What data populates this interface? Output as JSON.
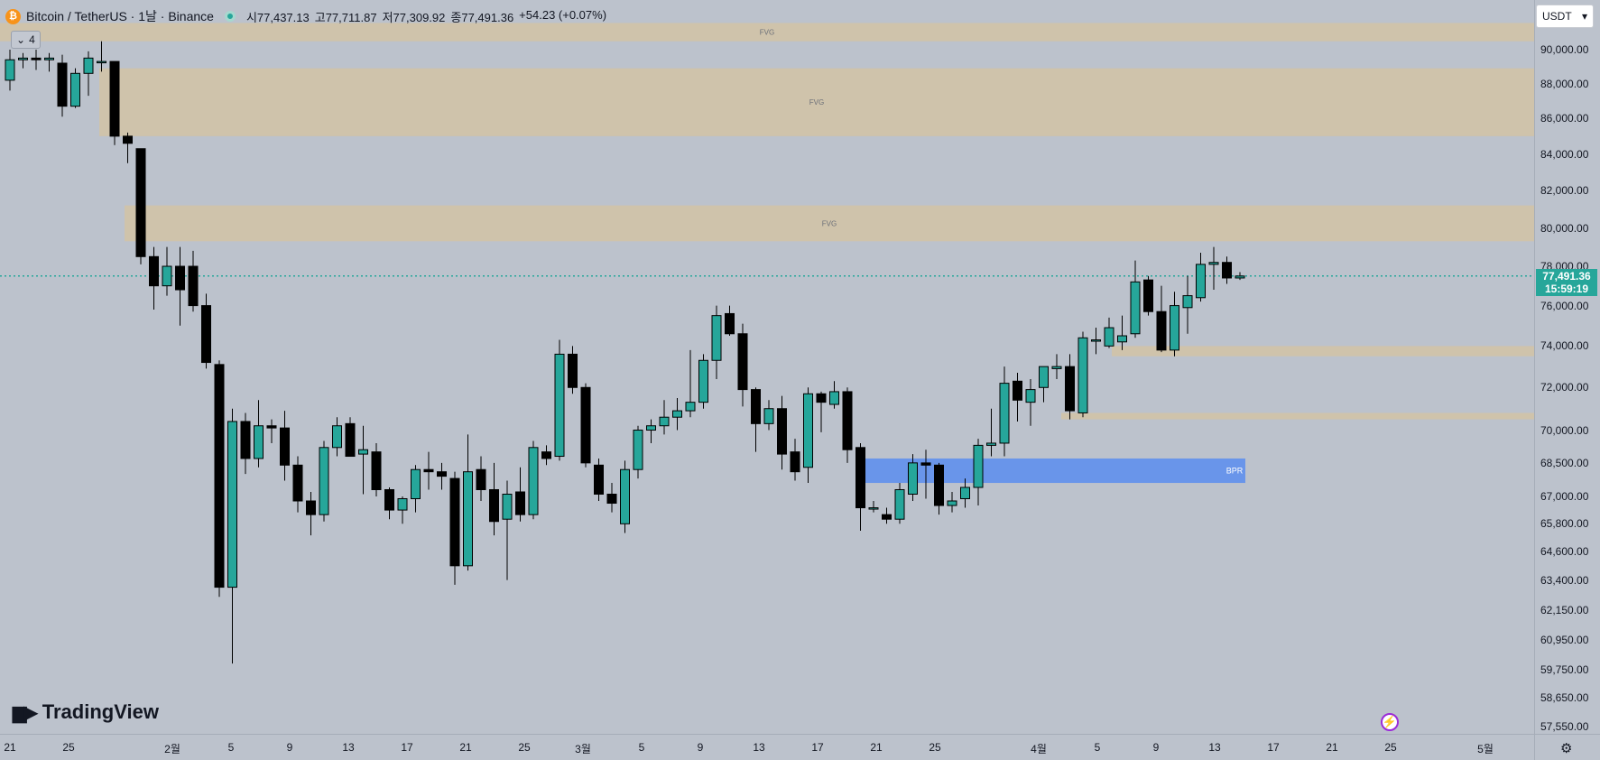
{
  "header": {
    "symbol": "Bitcoin / TetherUS · 1날 · Binance",
    "icon": "bitcoin-icon",
    "open": "시77,437.13",
    "high": "고77,711.87",
    "low": "저77,309.92",
    "close": "종77,491.36",
    "change": "+54.23 (+0.07%)",
    "collapse_count": "4"
  },
  "currency": "USDT",
  "last_price": {
    "value": "77,491.36",
    "countdown": "15:59:19"
  },
  "brand": {
    "name": "TradingView"
  },
  "price_ticks": [
    "90,000.00",
    "88,000.00",
    "86,000.00",
    "84,000.00",
    "82,000.00",
    "80,000.00",
    "78,000.00",
    "76,000.00",
    "74,000.00",
    "72,000.00",
    "70,000.00",
    "68,500.00",
    "67,000.00",
    "65,800.00",
    "64,600.00",
    "63,400.00",
    "62,150.00",
    "60,950.00",
    "59,750.00",
    "58,650.00",
    "57,550.00"
  ],
  "time_ticks": [
    "21",
    "25",
    "2월",
    "5",
    "9",
    "13",
    "17",
    "21",
    "25",
    "3월",
    "5",
    "9",
    "13",
    "17",
    "21",
    "25",
    "4월",
    "5",
    "9",
    "13",
    "17",
    "21",
    "25",
    "5월"
  ],
  "colors": {
    "up": "#26a69a",
    "down": "#000000",
    "fvg": "#d9c39a",
    "bpr": "#5b8def",
    "background": "#bcc2cc"
  },
  "chart_data": {
    "type": "candlestick",
    "title": "Bitcoin / TetherUS · 1날 · Binance",
    "x_labels": [
      "21",
      "25",
      "2월",
      "5",
      "9",
      "13",
      "17",
      "21",
      "25",
      "3월",
      "5",
      "9",
      "13",
      "17",
      "21",
      "25",
      "4월",
      "5",
      "9",
      "13",
      "17",
      "21",
      "25",
      "5월"
    ],
    "ylim": [
      57550,
      91800
    ],
    "y_scale": "log",
    "grid": false,
    "candles": [
      [
        88200,
        90000,
        87600,
        89400
      ],
      [
        89400,
        89800,
        88900,
        89500
      ],
      [
        89500,
        90000,
        88800,
        89400
      ],
      [
        89400,
        89800,
        88700,
        89500
      ],
      [
        89200,
        89700,
        86100,
        86700
      ],
      [
        86700,
        88900,
        86600,
        88600
      ],
      [
        88600,
        89900,
        87300,
        89500
      ],
      [
        89300,
        90500,
        88700,
        89300
      ],
      [
        89300,
        89300,
        84500,
        85000
      ],
      [
        85000,
        85200,
        83500,
        84600
      ],
      [
        84300,
        84300,
        78100,
        78500
      ],
      [
        78500,
        79000,
        75800,
        77000
      ],
      [
        77000,
        79000,
        76500,
        78000
      ],
      [
        78000,
        79000,
        75000,
        76800
      ],
      [
        78000,
        78800,
        75700,
        76000
      ],
      [
        76000,
        76600,
        72900,
        73200
      ],
      [
        73100,
        73300,
        62700,
        63100
      ],
      [
        63100,
        71000,
        60000,
        70400
      ],
      [
        70400,
        70800,
        68000,
        68700
      ],
      [
        68700,
        71400,
        68300,
        70200
      ],
      [
        70200,
        70500,
        69400,
        70100
      ],
      [
        70100,
        70900,
        67700,
        68400
      ],
      [
        68400,
        68800,
        66300,
        66800
      ],
      [
        66800,
        67200,
        65300,
        66200
      ],
      [
        66200,
        69500,
        65900,
        69200
      ],
      [
        69200,
        70600,
        68800,
        70200
      ],
      [
        70300,
        70600,
        68800,
        68800
      ],
      [
        68900,
        70200,
        67100,
        69100
      ],
      [
        69000,
        69400,
        67000,
        67300
      ],
      [
        67300,
        67400,
        66000,
        66400
      ],
      [
        66400,
        67000,
        65800,
        66900
      ],
      [
        66900,
        68400,
        66300,
        68200
      ],
      [
        68200,
        69000,
        67300,
        68100
      ],
      [
        68100,
        68500,
        67300,
        67900
      ],
      [
        67800,
        68100,
        63200,
        64000
      ],
      [
        64000,
        69800,
        63800,
        68100
      ],
      [
        68200,
        68800,
        66800,
        67300
      ],
      [
        67300,
        68500,
        65300,
        65900
      ],
      [
        66000,
        67700,
        63400,
        67100
      ],
      [
        67200,
        68300,
        65900,
        66200
      ],
      [
        66200,
        69500,
        66000,
        69200
      ],
      [
        69000,
        69300,
        68400,
        68700
      ],
      [
        68800,
        74300,
        68600,
        73600
      ],
      [
        73600,
        74000,
        71700,
        72000
      ],
      [
        72000,
        72200,
        68300,
        68500
      ],
      [
        68400,
        68700,
        66800,
        67100
      ],
      [
        67100,
        67600,
        66300,
        66700
      ],
      [
        65800,
        68600,
        65400,
        68200
      ],
      [
        68200,
        70200,
        67800,
        70000
      ],
      [
        70000,
        70500,
        69400,
        70200
      ],
      [
        70200,
        71400,
        69800,
        70600
      ],
      [
        70600,
        71500,
        70000,
        70900
      ],
      [
        70900,
        73800,
        70600,
        71300
      ],
      [
        71300,
        73600,
        71000,
        73300
      ],
      [
        73300,
        76000,
        72400,
        75500
      ],
      [
        75600,
        76000,
        74500,
        74600
      ],
      [
        74600,
        75100,
        71100,
        71900
      ],
      [
        71900,
        72000,
        69000,
        70300
      ],
      [
        70300,
        71400,
        70000,
        71000
      ],
      [
        71000,
        71600,
        68200,
        68900
      ],
      [
        69000,
        69600,
        67700,
        68100
      ],
      [
        68300,
        72000,
        67600,
        71700
      ],
      [
        71700,
        71800,
        69900,
        71300
      ],
      [
        71200,
        72300,
        71000,
        71800
      ],
      [
        71800,
        72000,
        68500,
        69100
      ],
      [
        69200,
        69400,
        65500,
        66500
      ],
      [
        66500,
        66800,
        66300,
        66500
      ],
      [
        66200,
        66500,
        65800,
        66000
      ],
      [
        66000,
        67600,
        65800,
        67300
      ],
      [
        67100,
        68900,
        66800,
        68500
      ],
      [
        68500,
        69100,
        66900,
        68400
      ],
      [
        68400,
        68500,
        66200,
        66600
      ],
      [
        66600,
        67200,
        66300,
        66800
      ],
      [
        66900,
        67800,
        66500,
        67400
      ],
      [
        67400,
        69600,
        66600,
        69300
      ],
      [
        69300,
        71000,
        68800,
        69400
      ],
      [
        69400,
        73000,
        68800,
        72200
      ],
      [
        72300,
        72700,
        70400,
        71400
      ],
      [
        71300,
        72400,
        70200,
        71900
      ],
      [
        72000,
        72800,
        71300,
        73000
      ],
      [
        72900,
        73600,
        72400,
        73000
      ],
      [
        73000,
        73600,
        70500,
        70900
      ],
      [
        70800,
        74700,
        70600,
        74400
      ],
      [
        74300,
        74900,
        73600,
        74300
      ],
      [
        74000,
        75400,
        73900,
        74900
      ],
      [
        74200,
        75500,
        73800,
        74500
      ],
      [
        74600,
        78300,
        74400,
        77200
      ],
      [
        77300,
        77500,
        75500,
        75700
      ],
      [
        75700,
        77000,
        73700,
        73800
      ],
      [
        73800,
        76700,
        73500,
        76000
      ],
      [
        75900,
        77500,
        74600,
        76500
      ],
      [
        76400,
        78700,
        76200,
        78100
      ],
      [
        78100,
        79000,
        76800,
        78200
      ],
      [
        78200,
        78500,
        77100,
        77400
      ],
      [
        77400,
        77700,
        77300,
        77500
      ]
    ],
    "zones": [
      {
        "label": "FVG",
        "from": 90500,
        "to": 91600
      },
      {
        "label": "FVG",
        "from": 85000,
        "to": 88900
      },
      {
        "label": "FVG",
        "from": 79300,
        "to": 81200
      },
      {
        "label": "FVG",
        "from": 73500,
        "to": 74000
      },
      {
        "label": "FVG",
        "from": 70500,
        "to": 70800
      },
      {
        "label": "BPR",
        "from": 67600,
        "to": 68700
      }
    ]
  }
}
